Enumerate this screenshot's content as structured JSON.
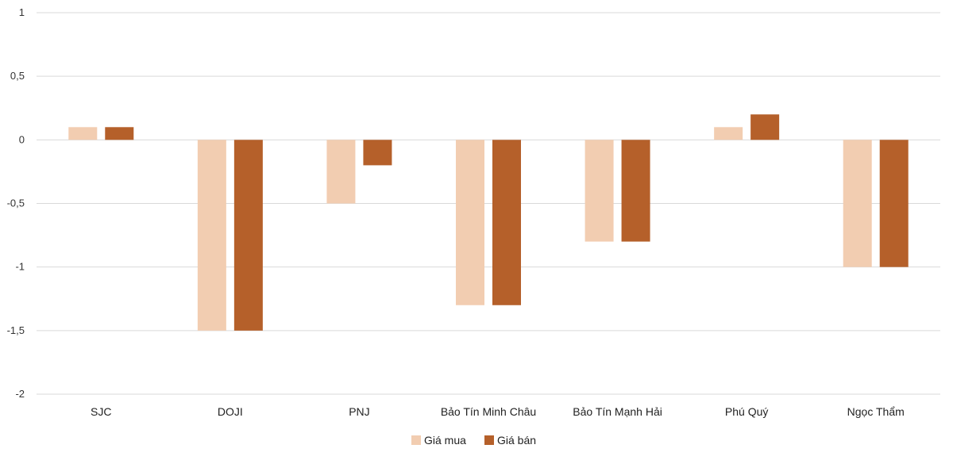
{
  "chart_data": {
    "type": "bar",
    "title": "",
    "xlabel": "",
    "ylabel": "",
    "ylim": [
      -2,
      1
    ],
    "y_ticks": [
      1,
      0.5,
      0,
      -0.5,
      -1,
      -1.5,
      -2
    ],
    "y_tick_labels": [
      "1",
      "0,5",
      "0",
      "-0,5",
      "-1",
      "-1,5",
      "-2"
    ],
    "categories": [
      "SJC",
      "DOJI",
      "PNJ",
      "Bảo Tín Minh Châu",
      "Bảo Tín Mạnh Hải",
      "Phú Quý",
      "Ngọc Thẩm"
    ],
    "series": [
      {
        "name": "Giá mua",
        "color": "#F2CDB1",
        "values": [
          0.1,
          -1.5,
          -0.5,
          -1.3,
          -0.8,
          0.1,
          -1.0
        ]
      },
      {
        "name": "Giá bán",
        "color": "#B5602A",
        "values": [
          0.1,
          -1.5,
          -0.2,
          -1.3,
          -0.8,
          0.2,
          -1.0
        ]
      }
    ],
    "grid": true,
    "legend_position": "bottom"
  }
}
